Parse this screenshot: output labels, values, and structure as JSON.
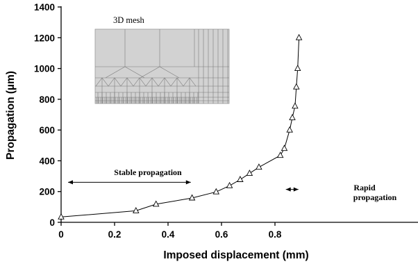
{
  "chart_data": {
    "type": "line",
    "xlabel": "Imposed displacement (mm)",
    "ylabel": "Propagation (µm)",
    "xlim": [
      0,
      1.0
    ],
    "ylim": [
      0,
      1400
    ],
    "x_ticks": [
      "0",
      "0.2",
      "0.4",
      "0.6",
      "0.8"
    ],
    "y_ticks": [
      "0",
      "200",
      "400",
      "600",
      "800",
      "1000",
      "1200",
      "1400"
    ],
    "grid": false,
    "marker": "open-triangle",
    "series": [
      {
        "x": [
          0.0,
          0.28,
          0.355,
          0.49,
          0.58,
          0.63,
          0.67,
          0.705,
          0.74,
          0.82,
          0.835,
          0.855,
          0.865,
          0.875,
          0.88,
          0.885,
          0.89
        ],
        "y": [
          35,
          75,
          118,
          158,
          198,
          238,
          278,
          318,
          358,
          435,
          480,
          600,
          680,
          755,
          880,
          1000,
          1200
        ]
      }
    ],
    "annotations": {
      "stable": {
        "text": "Stable propagation",
        "from": 0.0,
        "to": 0.48,
        "y": 260
      },
      "rapid": {
        "line1": "Rapid",
        "line2": "propagation",
        "from": 0.82,
        "to": 0.88,
        "y": 300
      }
    },
    "inset_title": "3D mesh"
  }
}
